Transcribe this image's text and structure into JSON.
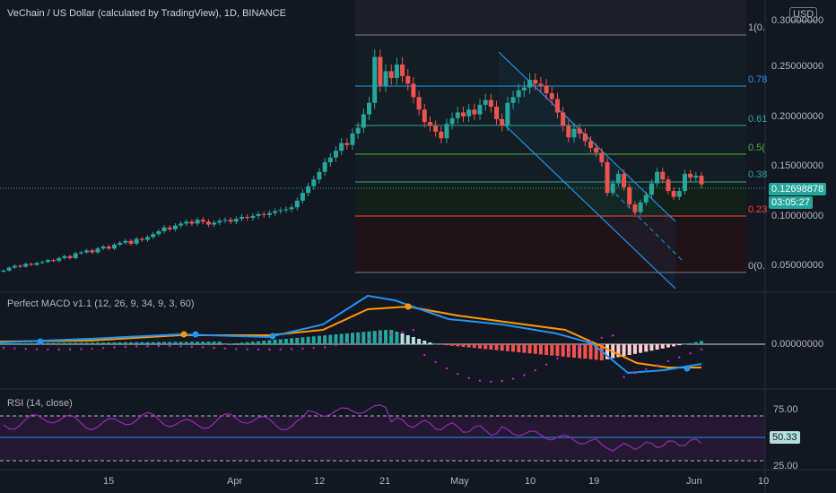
{
  "header": {
    "title": "VeChain / US Dollar (calculated by TradingView), 1D, BINANCE"
  },
  "currency_button": "USD",
  "panes": {
    "macd": {
      "title": "Perfect MACD v1.1 (12, 26, 9, 34, 9, 3, 60)",
      "zero_label": "0.00000000"
    },
    "rsi": {
      "title": "RSI (14, close)",
      "upper_label": "75.00",
      "lower_label": "25.00",
      "value_tag": "50.33"
    }
  },
  "price_axis": {
    "ticks": [
      "0.30000000",
      "0.25000000",
      "0.20000000",
      "0.15000000",
      "0.10000000",
      "0.05000000"
    ],
    "last_price": "0.12698878",
    "countdown": "03:05:27"
  },
  "fib_levels": [
    {
      "label": "1(0.",
      "color": "#787b86"
    },
    {
      "label": "0.78",
      "color": "#2196f3"
    },
    {
      "label": "0.61",
      "color": "#26a69a"
    },
    {
      "label": "0.5(",
      "color": "#4caf50"
    },
    {
      "label": "0.38",
      "color": "#26a69a"
    },
    {
      "label": "0.23",
      "color": "#f44336"
    },
    {
      "label": "0(0.",
      "color": "#787b86"
    }
  ],
  "time_axis": [
    "15",
    "Apr",
    "12",
    "21",
    "May",
    "10",
    "19",
    "Jun",
    "10"
  ],
  "colors": {
    "up": "#26a69a",
    "down": "#ef5350",
    "macd": "#2196f3",
    "signal": "#ff9800",
    "rsi": "#9c27b0",
    "channel": "#2196f3",
    "background": "#131722"
  },
  "chart_data": {
    "type": "candlestick",
    "title": "VeChain / US Dollar (calculated by TradingView), 1D, BINANCE",
    "ylim": [
      0.02,
      0.31
    ],
    "close": [
      0.037,
      0.04,
      0.042,
      0.041,
      0.044,
      0.043,
      0.045,
      0.046,
      0.048,
      0.047,
      0.05,
      0.052,
      0.05,
      0.055,
      0.056,
      0.058,
      0.056,
      0.06,
      0.062,
      0.06,
      0.064,
      0.066,
      0.068,
      0.065,
      0.07,
      0.069,
      0.072,
      0.075,
      0.078,
      0.082,
      0.08,
      0.084,
      0.086,
      0.088,
      0.086,
      0.09,
      0.088,
      0.085,
      0.087,
      0.089,
      0.09,
      0.088,
      0.091,
      0.093,
      0.092,
      0.094,
      0.096,
      0.095,
      0.097,
      0.099,
      0.1,
      0.101,
      0.103,
      0.11,
      0.118,
      0.125,
      0.132,
      0.14,
      0.15,
      0.155,
      0.162,
      0.17,
      0.168,
      0.18,
      0.186,
      0.2,
      0.212,
      0.26,
      0.23,
      0.245,
      0.238,
      0.252,
      0.24,
      0.232,
      0.218,
      0.205,
      0.192,
      0.188,
      0.182,
      0.175,
      0.19,
      0.196,
      0.202,
      0.198,
      0.205,
      0.2,
      0.21,
      0.215,
      0.208,
      0.195,
      0.188,
      0.212,
      0.218,
      0.225,
      0.228,
      0.236,
      0.232,
      0.23,
      0.222,
      0.216,
      0.202,
      0.188,
      0.176,
      0.185,
      0.18,
      0.172,
      0.165,
      0.16,
      0.15,
      0.118,
      0.128,
      0.138,
      0.124,
      0.106,
      0.098,
      0.108,
      0.116,
      0.128,
      0.14,
      0.132,
      0.12,
      0.114,
      0.12,
      0.138,
      0.134,
      0.136,
      0.127
    ],
    "macd": {
      "zero_label": "0.00000000"
    },
    "rsi": {
      "upper": 75,
      "lower": 25,
      "current": 50.33
    }
  }
}
